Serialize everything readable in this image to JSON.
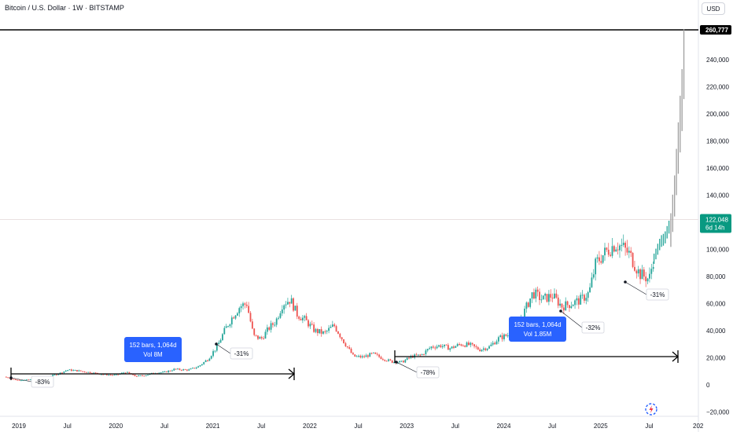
{
  "header": {
    "symbol_title": "Bitcoin / U.S. Dollar · 1W · BITSTAMP",
    "currency": "USD"
  },
  "colors": {
    "up": "#26a69a",
    "down": "#ef5350",
    "projection": "#9e9e9e",
    "measure_box": "#2962ff",
    "price_badge": "#089981",
    "ath_badge": "#000000"
  },
  "price_scale": {
    "ticks": [
      "260,777",
      "240,000",
      "220,000",
      "200,000",
      "180,000",
      "160,000",
      "140,000",
      "120,000",
      "100,000",
      "80,000",
      "60,000",
      "40,000",
      "20,000",
      "0",
      "−20,000"
    ],
    "ath_label": "260,777",
    "current_price": "122,048",
    "countdown": "6d 14h"
  },
  "time_axis": {
    "ticks": [
      "2019",
      "Jul",
      "2020",
      "Jul",
      "2021",
      "Jul",
      "2022",
      "Jul",
      "2023",
      "Jul",
      "2024",
      "Jul",
      "2025",
      "Jul",
      "202"
    ]
  },
  "annotations": {
    "labels": [
      "-83%",
      "-31%",
      "-78%",
      "-32%",
      "-31%"
    ],
    "measure_1": {
      "line1": "152 bars, 1,064d",
      "line2": "Vol 8M"
    },
    "measure_2": {
      "line1": "152 bars, 1,064d",
      "line2": "Vol 1.85M"
    }
  },
  "chart_data": {
    "type": "line",
    "title": "Bitcoin / U.S. Dollar · 1W · BITSTAMP",
    "xlabel": "",
    "ylabel": "USD",
    "ylim": [
      -20000,
      265000
    ],
    "xlim": [
      2018.85,
      2026.0
    ],
    "grid": false,
    "series": [
      {
        "name": "",
        "x": [
          2018.85,
          2018.95,
          2019.0,
          2019.1,
          2019.25,
          2019.4,
          2019.5,
          2019.6,
          2019.75,
          2019.9,
          2020.0,
          2020.1,
          2020.2,
          2020.3,
          2020.4,
          2020.5,
          2020.6,
          2020.75,
          2020.85,
          2020.95,
          2021.05,
          2021.12,
          2021.2,
          2021.28,
          2021.35,
          2021.42,
          2021.5,
          2021.58,
          2021.65,
          2021.72,
          2021.8,
          2021.87,
          2021.95,
          2022.05,
          2022.15,
          2022.25,
          2022.35,
          2022.45,
          2022.55,
          2022.65,
          2022.75,
          2022.85,
          2022.95,
          2023.05,
          2023.15,
          2023.25,
          2023.35,
          2023.45,
          2023.55,
          2023.65,
          2023.75,
          2023.85,
          2023.95,
          2024.05,
          2024.12,
          2024.2,
          2024.3,
          2024.4,
          2024.5,
          2024.6,
          2024.7,
          2024.8,
          2024.88,
          2024.95,
          2025.05,
          2025.15,
          2025.22,
          2025.3,
          2025.4,
          2025.5,
          2025.55
        ],
        "y": [
          6000,
          4000,
          3500,
          3800,
          5000,
          8000,
          11000,
          10500,
          9000,
          7500,
          7200,
          9500,
          6500,
          7000,
          9000,
          9300,
          11500,
          11000,
          13500,
          19000,
          29000,
          40000,
          50000,
          58000,
          60000,
          36000,
          34000,
          42000,
          47000,
          60000,
          63000,
          52000,
          48000,
          40000,
          38000,
          44000,
          32000,
          21000,
          20500,
          23000,
          19500,
          17000,
          16800,
          21000,
          22000,
          28000,
          29000,
          27000,
          30000,
          29500,
          26000,
          28000,
          34500,
          37000,
          42500,
          52000,
          68000,
          63000,
          66000,
          58000,
          60000,
          63000,
          68000,
          90000,
          98000,
          104000,
          102000,
          96000,
          82000,
          78000,
          95000
        ]
      },
      {
        "name": "",
        "x": [
          2025.55,
          2025.62,
          2025.66,
          2025.72,
          2025.76,
          2025.8,
          2025.84,
          2025.86
        ],
        "y": [
          95000,
          108000,
          110000,
          122048,
          150000,
          190000,
          230000,
          260777
        ]
      }
    ],
    "annotations": [
      {
        "text": "-83%",
        "x": 2019.0,
        "y": 3500
      },
      {
        "text": "-31%",
        "x": 2021.05,
        "y": 29000
      },
      {
        "text": "-78%",
        "x": 2022.95,
        "y": 15800
      },
      {
        "text": "-32%",
        "x": 2024.6,
        "y": 49000
      },
      {
        "text": "-31%",
        "x": 2025.3,
        "y": 74500
      },
      {
        "text": "152 bars, 1,064d · Vol 8M",
        "x": 2020.3,
        "y": 28000
      },
      {
        "text": "152 bars, 1,064d · Vol 1.85M",
        "x": 2024.4,
        "y": 43000
      }
    ]
  }
}
